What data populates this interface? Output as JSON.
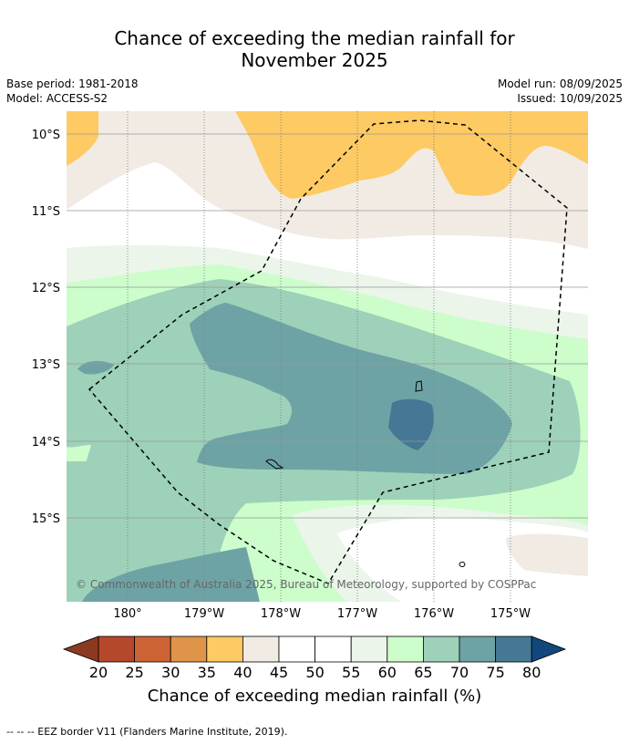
{
  "title": {
    "line1": "Chance of exceeding the median rainfall for",
    "line2": "November 2025"
  },
  "meta": {
    "base_period": "Base period: 1981-2018",
    "model": "Model: ACCESS-S2",
    "model_run": "Model run: 08/09/2025",
    "issued": "Issued: 10/09/2025"
  },
  "map": {
    "lat_labels": [
      "10°S",
      "11°S",
      "12°S",
      "13°S",
      "14°S",
      "15°S"
    ],
    "lon_labels": [
      "180°",
      "179°W",
      "178°W",
      "177°W",
      "176°W",
      "175°W"
    ],
    "copyright": "© Commonwealth of Australia 2025, Bureau of Meteorology, supported by COSPPac",
    "eez_border": "dashed black line"
  },
  "colorbar": {
    "ticks": [
      "20",
      "25",
      "30",
      "35",
      "40",
      "45",
      "50",
      "55",
      "60",
      "65",
      "70",
      "75",
      "80"
    ],
    "label": "Chance of exceeding median rainfall (%)",
    "colors": {
      "below_20": "#8b3a22",
      "20_25": "#b5482a",
      "25_30": "#cd6334",
      "30_35": "#e09449",
      "35_40": "#fdca63",
      "40_45": "#f1ebe4",
      "45_50": "#ffffff",
      "50_55": "#ffffff",
      "55_60": "#ebf5ea",
      "60_65": "#ccfdcb",
      "65_70": "#9ed1b9",
      "70_75": "#6ea3a5",
      "75_80": "#447894",
      "above_80": "#12477d"
    }
  },
  "footer": {
    "eez_note": "--  --  -- EEZ border V11 (Flanders Marine Institute, 2019)."
  }
}
